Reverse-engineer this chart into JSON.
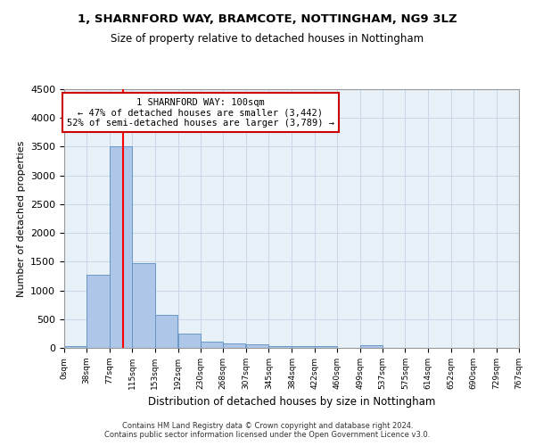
{
  "title1": "1, SHARNFORD WAY, BRAMCOTE, NOTTINGHAM, NG9 3LZ",
  "title2": "Size of property relative to detached houses in Nottingham",
  "xlabel": "Distribution of detached houses by size in Nottingham",
  "ylabel": "Number of detached properties",
  "footer1": "Contains HM Land Registry data © Crown copyright and database right 2024.",
  "footer2": "Contains public sector information licensed under the Open Government Licence v3.0.",
  "bin_labels": [
    "0sqm",
    "38sqm",
    "77sqm",
    "115sqm",
    "153sqm",
    "192sqm",
    "230sqm",
    "268sqm",
    "307sqm",
    "345sqm",
    "384sqm",
    "422sqm",
    "460sqm",
    "499sqm",
    "537sqm",
    "575sqm",
    "614sqm",
    "652sqm",
    "690sqm",
    "729sqm",
    "767sqm"
  ],
  "bin_edges": [
    0,
    38,
    77,
    115,
    153,
    192,
    230,
    268,
    307,
    345,
    384,
    422,
    460,
    499,
    537,
    575,
    614,
    652,
    690,
    729,
    767
  ],
  "bar_heights": [
    30,
    1270,
    3500,
    1480,
    575,
    250,
    115,
    80,
    55,
    30,
    25,
    25,
    0,
    50,
    0,
    0,
    0,
    0,
    0,
    0,
    0
  ],
  "bar_color": "#aec6e8",
  "bar_edge_color": "#5a8fc2",
  "grid_color": "#c8d8e8",
  "bg_color": "#e8f0f8",
  "annotation_box_color": "#cc0000",
  "property_line_x": 100,
  "annotation_line1": "1 SHARNFORD WAY: 100sqm",
  "annotation_line2": "← 47% of detached houses are smaller (3,442)",
  "annotation_line3": "52% of semi-detached houses are larger (3,789) →",
  "ylim": [
    0,
    4500
  ],
  "yticks": [
    0,
    500,
    1000,
    1500,
    2000,
    2500,
    3000,
    3500,
    4000,
    4500
  ]
}
